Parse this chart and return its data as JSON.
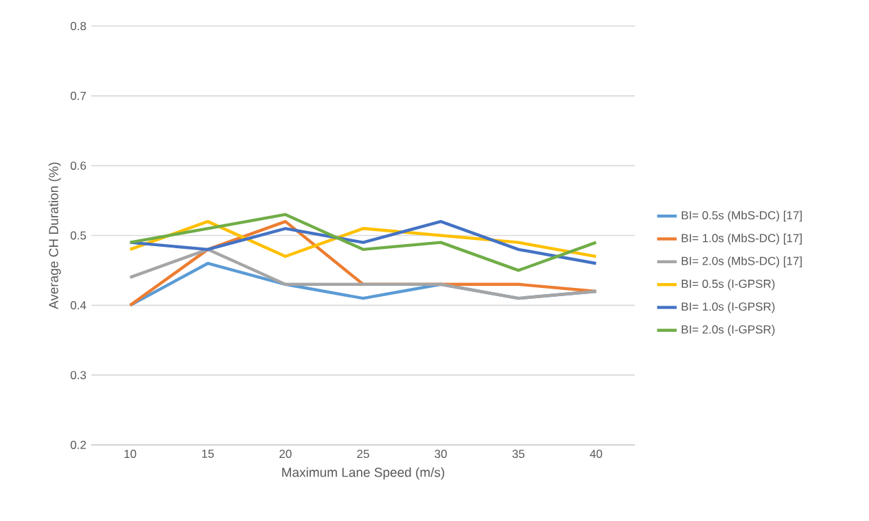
{
  "chart_data": {
    "type": "line",
    "xlabel": "Maximum Lane Speed (m/s)",
    "ylabel": "Average CH Duration (%)",
    "categories": [
      "10",
      "15",
      "20",
      "25",
      "30",
      "35",
      "40"
    ],
    "series": [
      {
        "name": "BI= 0.5s (MbS-DC) [17]",
        "color": "#5b9bd5",
        "values": [
          0.4,
          0.46,
          0.43,
          0.41,
          0.43,
          0.41,
          0.42
        ]
      },
      {
        "name": "BI= 1.0s (MbS-DC) [17]",
        "color": "#ed7d31",
        "values": [
          0.4,
          0.48,
          0.52,
          0.43,
          0.43,
          0.43,
          0.42
        ]
      },
      {
        "name": "BI= 2.0s (MbS-DC) [17]",
        "color": "#a5a5a5",
        "values": [
          0.44,
          0.48,
          0.43,
          0.43,
          0.43,
          0.41,
          0.42
        ]
      },
      {
        "name": "BI= 0.5s (I-GPSR)",
        "color": "#ffc000",
        "values": [
          0.48,
          0.52,
          0.47,
          0.51,
          0.5,
          0.49,
          0.47
        ]
      },
      {
        "name": "BI= 1.0s (I-GPSR)",
        "color": "#4472c4",
        "values": [
          0.49,
          0.48,
          0.51,
          0.49,
          0.52,
          0.48,
          0.46
        ]
      },
      {
        "name": "BI= 2.0s (I-GPSR)",
        "color": "#70ad47",
        "values": [
          0.49,
          0.51,
          0.53,
          0.48,
          0.49,
          0.45,
          0.49
        ]
      }
    ],
    "ylim": [
      0.2,
      0.8
    ],
    "yticks": [
      0.2,
      0.3,
      0.4,
      0.5,
      0.6,
      0.7,
      0.8
    ],
    "grid": "y",
    "legend": "right",
    "marker": "none",
    "line_style": "solid"
  }
}
